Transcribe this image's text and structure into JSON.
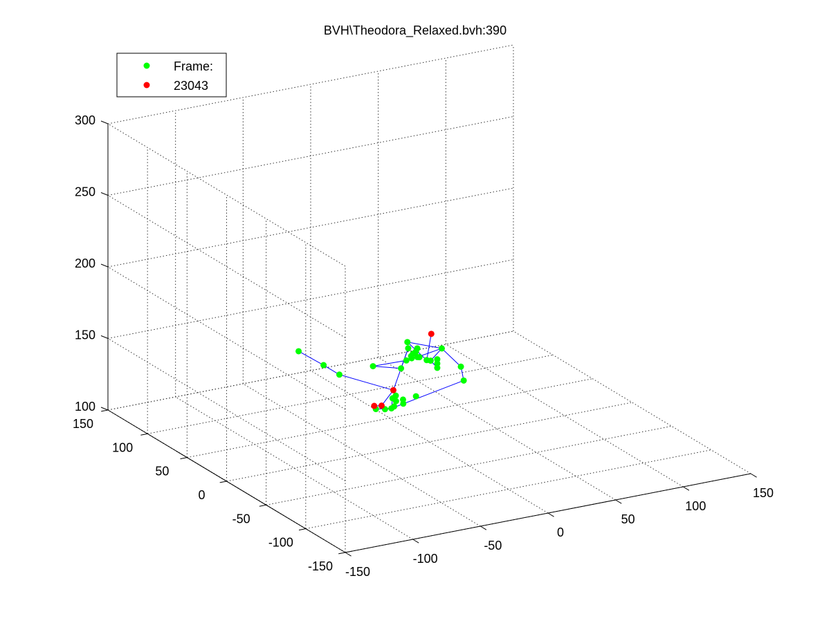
{
  "chart_data": {
    "type": "scatter",
    "title": "BVH\\Theodora_Relaxed.bvh:390",
    "xlabel": "",
    "ylabel": "",
    "zlabel": "",
    "grid": true,
    "box": true,
    "view": "3d",
    "xlim": [
      -150,
      150
    ],
    "ylim": [
      -150,
      150
    ],
    "zlim": [
      100,
      300
    ],
    "x_ticks": [
      "-150",
      "-100",
      "-50",
      "0",
      "50",
      "100",
      "150"
    ],
    "y_ticks": [
      "150",
      "100",
      "50",
      "0",
      "-50",
      "-100",
      "-150"
    ],
    "z_ticks": [
      "100",
      "150",
      "200",
      "250",
      "300"
    ],
    "legend": {
      "placement": "top-left",
      "entries": [
        {
          "label": "Frame:",
          "color": "#00ff00"
        },
        {
          "label": "23043",
          "color": "#ff0000"
        }
      ]
    },
    "colors": {
      "joint": "#00ff00",
      "end_site": "#ff0000",
      "bone": "#0000ff",
      "grid": "#333333"
    },
    "series": [
      {
        "name": "Frame:",
        "marker": "dot",
        "points": [
          [
            24,
            31,
            137
          ],
          [
            24,
            31,
            140
          ],
          [
            24,
            31,
            143
          ],
          [
            6,
            37,
            152
          ],
          [
            -25,
            71,
            128
          ],
          [
            -25,
            91,
            128
          ],
          [
            -30,
            114,
            131
          ],
          [
            -18,
            5,
            153
          ],
          [
            -37,
            8,
            157
          ],
          [
            -17,
            0,
            160
          ],
          [
            -17,
            -14,
            167
          ],
          [
            -9,
            -17,
            164
          ],
          [
            -6,
            -26,
            175
          ],
          [
            -18,
            -3,
            174
          ],
          [
            -16,
            -24,
            168
          ],
          [
            -3,
            -45,
            168
          ],
          [
            -5,
            -52,
            161
          ],
          [
            -62,
            -58,
            154
          ],
          [
            -55,
            -61,
            157
          ],
          [
            -60,
            -56,
            160
          ],
          [
            -57,
            -55,
            161
          ],
          [
            -58,
            -57,
            158
          ],
          [
            -45,
            -60,
            160
          ],
          [
            -60,
            -58,
            155
          ],
          [
            -54,
            -59,
            159
          ],
          [
            -70,
            -52,
            153
          ],
          [
            -65,
            -55,
            153
          ],
          [
            7,
            35,
            147
          ],
          [
            10,
            34,
            150
          ],
          [
            11,
            34,
            152
          ],
          [
            8,
            36,
            145
          ],
          [
            9,
            36,
            148
          ],
          [
            12,
            33,
            146
          ]
        ]
      },
      {
        "name": "23043",
        "marker": "dot",
        "points": [
          [
            -12,
            25,
            130
          ],
          [
            -9,
            45,
            112
          ],
          [
            -8,
            56,
            108
          ],
          [
            -5,
            -11,
            180
          ]
        ]
      }
    ],
    "bones": [
      [
        [
          -12,
          25,
          130
        ],
        [
          -9,
          45,
          112
        ]
      ],
      [
        [
          -9,
          45,
          112
        ],
        [
          -8,
          56,
          108
        ]
      ],
      [
        [
          -12,
          25,
          130
        ],
        [
          -25,
          71,
          128
        ]
      ],
      [
        [
          -25,
          71,
          128
        ],
        [
          -25,
          91,
          128
        ]
      ],
      [
        [
          -25,
          91,
          128
        ],
        [
          -30,
          114,
          131
        ]
      ],
      [
        [
          -12,
          25,
          130
        ],
        [
          6,
          37,
          152
        ]
      ],
      [
        [
          6,
          37,
          152
        ],
        [
          -18,
          5,
          153
        ]
      ],
      [
        [
          -18,
          5,
          153
        ],
        [
          -37,
          8,
          157
        ]
      ],
      [
        [
          -37,
          8,
          157
        ],
        [
          -17,
          0,
          160
        ]
      ],
      [
        [
          -17,
          0,
          160
        ],
        [
          -17,
          -14,
          167
        ]
      ],
      [
        [
          -17,
          -14,
          167
        ],
        [
          -6,
          -26,
          175
        ]
      ],
      [
        [
          -6,
          -26,
          175
        ],
        [
          -18,
          -3,
          174
        ]
      ],
      [
        [
          -18,
          -3,
          174
        ],
        [
          -16,
          -24,
          168
        ]
      ],
      [
        [
          -16,
          -24,
          168
        ],
        [
          -5,
          -11,
          180
        ]
      ],
      [
        [
          -6,
          -26,
          175
        ],
        [
          -9,
          -17,
          164
        ]
      ],
      [
        [
          -9,
          -17,
          164
        ],
        [
          24,
          31,
          137
        ]
      ],
      [
        [
          -6,
          -26,
          175
        ],
        [
          -3,
          -45,
          168
        ]
      ],
      [
        [
          -3,
          -45,
          168
        ],
        [
          -5,
          -52,
          161
        ]
      ],
      [
        [
          -5,
          -52,
          161
        ],
        [
          -62,
          -58,
          154
        ]
      ],
      [
        [
          -62,
          -58,
          154
        ],
        [
          -70,
          -52,
          153
        ]
      ],
      [
        [
          -62,
          -58,
          154
        ],
        [
          -65,
          -55,
          153
        ]
      ],
      [
        [
          -62,
          -58,
          154
        ],
        [
          -60,
          -56,
          160
        ]
      ]
    ]
  }
}
